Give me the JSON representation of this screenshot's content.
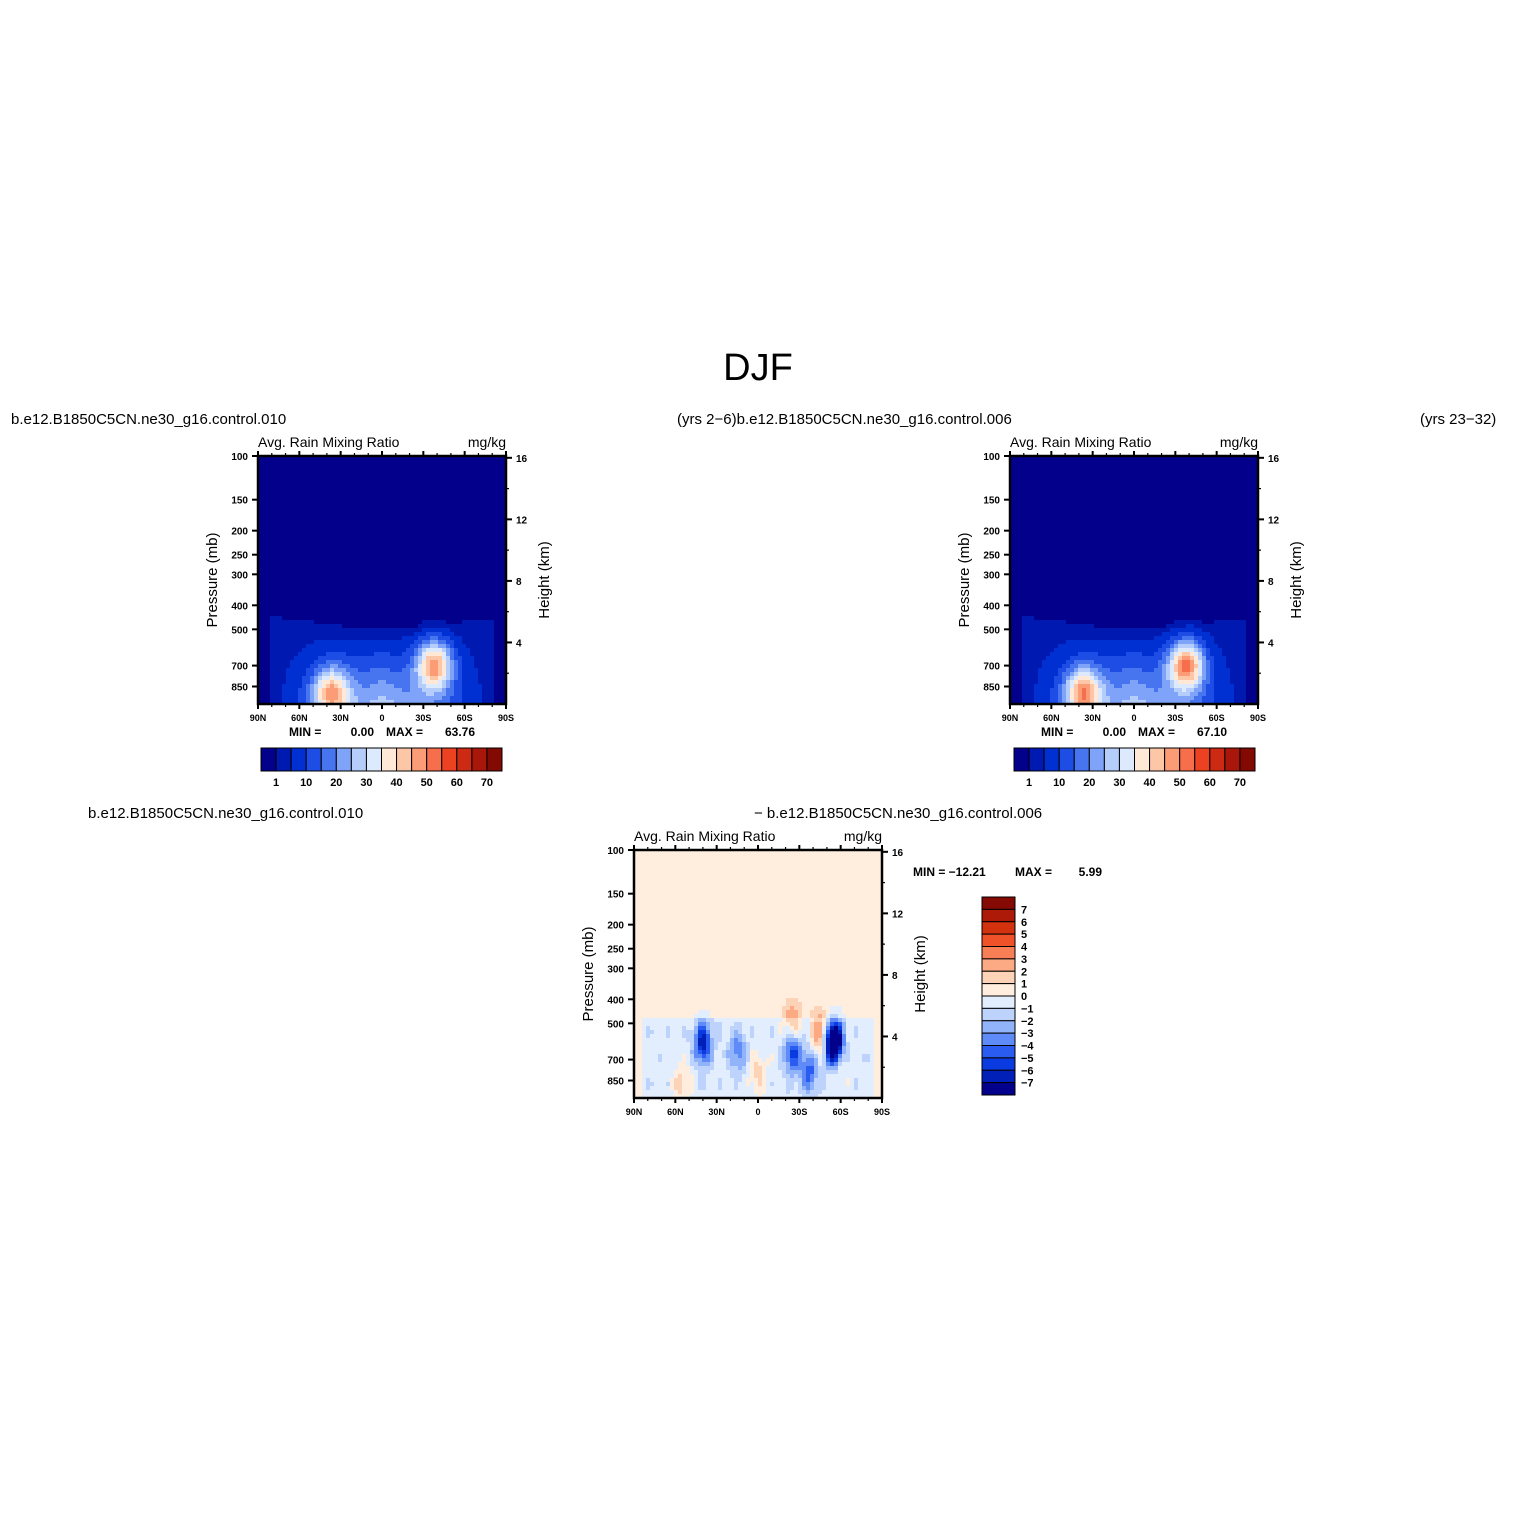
{
  "figure": {
    "title": "DJF",
    "header_left": "b.e12.B1850C5CN.ne30_g16.control.010",
    "header_mid": "(yrs 2−6)b.e12.B1850C5CN.ne30_g16.control.006",
    "header_right": "(yrs 23−32)",
    "diff_left_label": "b.e12.B1850C5CN.ne30_g16.control.010",
    "diff_mid_label": "− b.e12.B1850C5CN.ne30_g16.control.006"
  },
  "colors": {
    "seq_palette": [
      "#03008c",
      "#0019b0",
      "#0030d2",
      "#1e4de6",
      "#4775f0",
      "#7fa3f8",
      "#b5cdfb",
      "#dde9fd",
      "#ffe9d6",
      "#fdc7a7",
      "#fb9c77",
      "#f76e4c",
      "#ec4221",
      "#cc2a12",
      "#a8170a",
      "#830a02"
    ],
    "diff_palette": [
      "#03008c",
      "#0020b8",
      "#0a3be0",
      "#2a5cf2",
      "#5e8bf7",
      "#90b3fa",
      "#bdd3fc",
      "#e2eefe",
      "#ffeedd",
      "#fdd3b8",
      "#fbaa84",
      "#f77e55",
      "#ef5128",
      "#d4320e",
      "#ae1a08",
      "#850a03"
    ]
  },
  "chart_data": [
    {
      "type": "heatmap",
      "panel": "case",
      "title_left": "Avg. Rain Mixing Ratio",
      "title_right": "mg/kg",
      "ylabel": "Pressure (mb)",
      "ylabel_right": "Height (km)",
      "x_ticks": [
        "90N",
        "60N",
        "30N",
        "0",
        "30S",
        "60S",
        "90S"
      ],
      "y_ticks": [
        "100",
        "150",
        "200",
        "250",
        "300",
        "400",
        "500",
        "700",
        "850"
      ],
      "y_right_ticks": [
        "16",
        "12",
        "8",
        "4"
      ],
      "xlim": [
        90,
        -90
      ],
      "ylim": [
        100,
        1000
      ],
      "min_label": "MIN =",
      "min_value": "0.00",
      "max_label": "MAX =",
      "max_value": "63.76",
      "colorbar_labels": [
        "1",
        "10",
        "20",
        "30",
        "40",
        "50",
        "60",
        "70"
      ],
      "peaks": [
        {
          "lat": -38,
          "pressure": 700,
          "value": 63.76
        },
        {
          "lat": 37,
          "pressure": 900,
          "value": 58
        }
      ]
    },
    {
      "type": "heatmap",
      "panel": "control",
      "title_left": "Avg. Rain Mixing Ratio",
      "title_right": "mg/kg",
      "ylabel": "Pressure (mb)",
      "ylabel_right": "Height (km)",
      "x_ticks": [
        "90N",
        "60N",
        "30N",
        "0",
        "30S",
        "60S",
        "90S"
      ],
      "y_ticks": [
        "100",
        "150",
        "200",
        "250",
        "300",
        "400",
        "500",
        "700",
        "850"
      ],
      "y_right_ticks": [
        "16",
        "12",
        "8",
        "4"
      ],
      "xlim": [
        90,
        -90
      ],
      "ylim": [
        100,
        1000
      ],
      "min_label": "MIN =",
      "min_value": "0.00",
      "max_label": "MAX =",
      "max_value": "67.10",
      "colorbar_labels": [
        "1",
        "10",
        "20",
        "30",
        "40",
        "50",
        "60",
        "70"
      ],
      "peaks": [
        {
          "lat": -38,
          "pressure": 700,
          "value": 67.1
        },
        {
          "lat": 37,
          "pressure": 900,
          "value": 60
        }
      ]
    },
    {
      "type": "heatmap",
      "panel": "difference",
      "title_left": "Avg. Rain Mixing Ratio",
      "title_right": "mg/kg",
      "ylabel": "Pressure (mb)",
      "ylabel_right": "Height (km)",
      "x_ticks": [
        "90N",
        "60N",
        "30N",
        "0",
        "30S",
        "60S",
        "90S"
      ],
      "y_ticks": [
        "100",
        "150",
        "200",
        "250",
        "300",
        "400",
        "500",
        "700",
        "850"
      ],
      "y_right_ticks": [
        "16",
        "12",
        "8",
        "4"
      ],
      "xlim": [
        90,
        -90
      ],
      "ylim": [
        100,
        1000
      ],
      "min_label": "MIN = −12.21",
      "max_label": "MAX =",
      "max_value": "5.99",
      "colorbar_labels": [
        "7",
        "6",
        "5",
        "4",
        "3",
        "2",
        "1",
        "0",
        "−1",
        "−2",
        "−3",
        "−4",
        "−5",
        "−6",
        "−7"
      ],
      "anomalies": [
        {
          "lat": 40,
          "pressure": 600,
          "value": -6
        },
        {
          "lat": 15,
          "pressure": 650,
          "value": -3
        },
        {
          "lat": -25,
          "pressure": 650,
          "value": -5
        },
        {
          "lat": -37,
          "pressure": 780,
          "value": -4
        },
        {
          "lat": -55,
          "pressure": 600,
          "value": -12.21
        },
        {
          "lat": -45,
          "pressure": 550,
          "value": 4
        },
        {
          "lat": -25,
          "pressure": 500,
          "value": 3
        },
        {
          "lat": 55,
          "pressure": 880,
          "value": 2
        },
        {
          "lat": 0,
          "pressure": 800,
          "value": 2
        },
        {
          "lat": -58,
          "pressure": 700,
          "value": 1.5
        }
      ]
    }
  ]
}
